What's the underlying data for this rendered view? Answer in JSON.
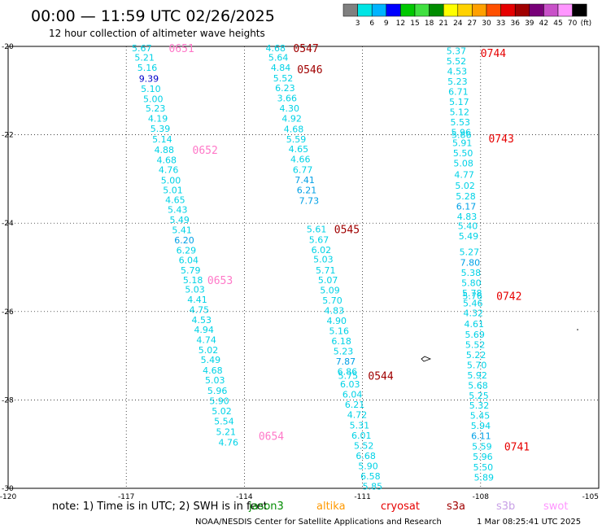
{
  "title": "00:00 — 11:59 UTC 02/26/2025",
  "subtitle": "12 hour collection of altimeter wave heights",
  "note": "note: 1) Time is in UTC; 2) SWH is in feet",
  "credit": "NOAA/NESDIS Center for Satellite Applications and Research",
  "timestamp": "1 Mar 08:25:41 UTC 2025",
  "colorbar": {
    "unit": "(ft)",
    "ticks": [
      "3",
      "6",
      "9",
      "12",
      "15",
      "18",
      "21",
      "24",
      "27",
      "30",
      "33",
      "36",
      "39",
      "42",
      "45",
      "70"
    ],
    "colors": [
      "#808080",
      "#00e5e5",
      "#00b4ff",
      "#0000ff",
      "#00c800",
      "#40e040",
      "#008c00",
      "#ffff00",
      "#ffd200",
      "#ffa000",
      "#ff5000",
      "#e60000",
      "#a00000",
      "#780078",
      "#c850c8",
      "#ff96ff",
      "#000000"
    ]
  },
  "satellites": [
    {
      "name": "jason3",
      "color": "#008c00"
    },
    {
      "name": "altika",
      "color": "#ff9900"
    },
    {
      "name": "cryosat",
      "color": "#e60000"
    },
    {
      "name": "s3a",
      "color": "#a00000"
    },
    {
      "name": "s3b",
      "color": "#c8a0e6"
    },
    {
      "name": "swot",
      "color": "#ff96ff"
    }
  ],
  "chart_data": {
    "type": "scatter",
    "xlim": [
      -120,
      -105
    ],
    "ylim": [
      -30,
      -20
    ],
    "x_ticks": [
      "-120",
      "-117",
      "-114",
      "-111",
      "-108",
      "-105"
    ],
    "y_ticks": [
      "-20",
      "-22",
      "-24",
      "-26",
      "-28",
      "-30"
    ],
    "grid": true,
    "tracks": [
      {
        "color": "#00d2e6",
        "points": [
          {
            "x": -116.86,
            "y": -20.04,
            "label": "5.67"
          },
          {
            "x": -116.79,
            "y": -20.25,
            "label": "5.21"
          },
          {
            "x": -116.72,
            "y": -20.48,
            "label": "5.16"
          },
          {
            "x": -116.68,
            "y": -20.73,
            "label": "9.39",
            "color": "#0000c8"
          },
          {
            "x": -116.63,
            "y": -20.96,
            "label": "5.10"
          },
          {
            "x": -116.57,
            "y": -21.19,
            "label": "5.00"
          },
          {
            "x": -116.51,
            "y": -21.4,
            "label": "5.23"
          },
          {
            "x": -116.45,
            "y": -21.63,
            "label": "4.19"
          },
          {
            "x": -116.39,
            "y": -21.86,
            "label": "5.39"
          },
          {
            "x": -116.34,
            "y": -22.1,
            "label": "5.14"
          },
          {
            "x": -116.29,
            "y": -22.34,
            "label": "4.88"
          },
          {
            "x": -116.23,
            "y": -22.57,
            "label": "4.68"
          },
          {
            "x": -116.18,
            "y": -22.79,
            "label": "4.76"
          },
          {
            "x": -116.12,
            "y": -23.03,
            "label": "5.00"
          },
          {
            "x": -116.07,
            "y": -23.25,
            "label": "5.01"
          },
          {
            "x": -116.01,
            "y": -23.47,
            "label": "4.65"
          },
          {
            "x": -115.95,
            "y": -23.69,
            "label": "5.43"
          },
          {
            "x": -115.9,
            "y": -23.92,
            "label": "5.49"
          },
          {
            "x": -115.84,
            "y": -24.15,
            "label": "5.41"
          },
          {
            "x": -115.78,
            "y": -24.38,
            "label": "6.20",
            "color": "#00a0e6"
          },
          {
            "x": -115.73,
            "y": -24.61,
            "label": "6.29"
          },
          {
            "x": -115.67,
            "y": -24.83,
            "label": "6.04"
          },
          {
            "x": -115.62,
            "y": -25.06,
            "label": "5.79"
          },
          {
            "x": -115.56,
            "y": -25.29,
            "label": "5.18"
          },
          {
            "x": -115.51,
            "y": -25.5,
            "label": "5.03"
          },
          {
            "x": -115.45,
            "y": -25.73,
            "label": "4.41"
          },
          {
            "x": -115.4,
            "y": -25.96,
            "label": "4.75"
          },
          {
            "x": -115.34,
            "y": -26.19,
            "label": "4.53"
          },
          {
            "x": -115.28,
            "y": -26.41,
            "label": "4.94"
          },
          {
            "x": -115.22,
            "y": -26.64,
            "label": "4.74"
          },
          {
            "x": -115.17,
            "y": -26.87,
            "label": "5.02"
          },
          {
            "x": -115.11,
            "y": -27.09,
            "label": "5.49"
          },
          {
            "x": -115.06,
            "y": -27.33,
            "label": "4.68"
          },
          {
            "x": -115.0,
            "y": -27.55,
            "label": "5.03"
          },
          {
            "x": -114.94,
            "y": -27.79,
            "label": "5.96"
          },
          {
            "x": -114.89,
            "y": -28.02,
            "label": "5.90"
          },
          {
            "x": -114.83,
            "y": -28.25,
            "label": "5.02"
          },
          {
            "x": -114.77,
            "y": -28.48,
            "label": "5.54"
          },
          {
            "x": -114.72,
            "y": -28.72,
            "label": "5.21"
          },
          {
            "x": -114.66,
            "y": -28.96,
            "label": "4.76"
          }
        ]
      },
      {
        "color": "#00d2e6",
        "points": [
          {
            "x": -113.46,
            "y": -20.04,
            "label": "4.68"
          },
          {
            "x": -113.39,
            "y": -20.25,
            "label": "5.64"
          },
          {
            "x": -113.33,
            "y": -20.48,
            "label": "4.84"
          },
          {
            "x": -113.27,
            "y": -20.72,
            "label": "5.52"
          },
          {
            "x": -113.22,
            "y": -20.94,
            "label": "6.23"
          },
          {
            "x": -113.17,
            "y": -21.17,
            "label": "3.66"
          },
          {
            "x": -113.11,
            "y": -21.4,
            "label": "4.30"
          },
          {
            "x": -113.05,
            "y": -21.63,
            "label": "4.92"
          },
          {
            "x": -113.0,
            "y": -21.87,
            "label": "4.68"
          },
          {
            "x": -112.94,
            "y": -22.1,
            "label": "5.59"
          },
          {
            "x": -112.88,
            "y": -22.32,
            "label": "4.65"
          },
          {
            "x": -112.83,
            "y": -22.55,
            "label": "4.66"
          },
          {
            "x": -112.77,
            "y": -22.79,
            "label": "6.77"
          },
          {
            "x": -112.72,
            "y": -23.02,
            "label": "7.41",
            "color": "#00a0e6"
          },
          {
            "x": -112.67,
            "y": -23.25,
            "label": "6.21",
            "color": "#00a0e6"
          },
          {
            "x": -112.61,
            "y": -23.49,
            "label": "7.73",
            "color": "#00a0e6"
          },
          {
            "x": -112.42,
            "y": -24.13,
            "label": "5.61"
          },
          {
            "x": -112.36,
            "y": -24.37,
            "label": "5.67"
          },
          {
            "x": -112.3,
            "y": -24.6,
            "label": "6.02"
          },
          {
            "x": -112.25,
            "y": -24.82,
            "label": "5.03"
          },
          {
            "x": -112.19,
            "y": -25.06,
            "label": "5.71"
          },
          {
            "x": -112.13,
            "y": -25.29,
            "label": "5.07"
          },
          {
            "x": -112.08,
            "y": -25.52,
            "label": "5.09"
          },
          {
            "x": -112.02,
            "y": -25.75,
            "label": "5.70"
          },
          {
            "x": -111.97,
            "y": -25.98,
            "label": "4.83"
          },
          {
            "x": -111.91,
            "y": -26.21,
            "label": "4.90"
          },
          {
            "x": -111.85,
            "y": -26.44,
            "label": "5.16"
          },
          {
            "x": -111.79,
            "y": -26.67,
            "label": "6.18"
          },
          {
            "x": -111.74,
            "y": -26.9,
            "label": "5.23"
          },
          {
            "x": -111.68,
            "y": -27.13,
            "label": "7.87",
            "color": "#00a0e6"
          },
          {
            "x": -111.64,
            "y": -27.36,
            "label": "6.86"
          },
          {
            "x": -111.62,
            "y": -27.45,
            "label": "5.75"
          },
          {
            "x": -111.57,
            "y": -27.64,
            "label": "6.03"
          },
          {
            "x": -111.51,
            "y": -27.87,
            "label": "6.04"
          },
          {
            "x": -111.45,
            "y": -28.1,
            "label": "6.21"
          },
          {
            "x": -111.39,
            "y": -28.33,
            "label": "4.72"
          },
          {
            "x": -111.33,
            "y": -28.57,
            "label": "5.31"
          },
          {
            "x": -111.28,
            "y": -28.8,
            "label": "6.01"
          },
          {
            "x": -111.22,
            "y": -29.03,
            "label": "5.52"
          },
          {
            "x": -111.17,
            "y": -29.26,
            "label": "6.68"
          },
          {
            "x": -111.11,
            "y": -29.49,
            "label": "5.90"
          },
          {
            "x": -111.05,
            "y": -29.72,
            "label": "6.58"
          },
          {
            "x": -111.0,
            "y": -29.95,
            "label": "5.85"
          }
        ]
      },
      {
        "color": "#00d2e6",
        "points": [
          {
            "x": -108.87,
            "y": -20.1,
            "label": "5.37"
          },
          {
            "x": -108.87,
            "y": -20.33,
            "label": "5.52"
          },
          {
            "x": -108.85,
            "y": -20.56,
            "label": "4.53"
          },
          {
            "x": -108.84,
            "y": -20.79,
            "label": "5.23"
          },
          {
            "x": -108.82,
            "y": -21.02,
            "label": "6.71"
          },
          {
            "x": -108.8,
            "y": -21.25,
            "label": "5.17"
          },
          {
            "x": -108.79,
            "y": -21.48,
            "label": "5.12"
          },
          {
            "x": -108.77,
            "y": -21.71,
            "label": "5.53"
          },
          {
            "x": -108.75,
            "y": -21.94,
            "label": "5.96"
          },
          {
            "x": -108.74,
            "y": -22.0,
            "label": "5.86"
          },
          {
            "x": -108.72,
            "y": -22.18,
            "label": "5.91"
          },
          {
            "x": -108.7,
            "y": -22.41,
            "label": "5.50"
          },
          {
            "x": -108.69,
            "y": -22.64,
            "label": "5.08"
          },
          {
            "x": -108.67,
            "y": -22.9,
            "label": "4.77"
          },
          {
            "x": -108.65,
            "y": -23.15,
            "label": "5.02"
          },
          {
            "x": -108.63,
            "y": -23.39,
            "label": "5.28"
          },
          {
            "x": -108.62,
            "y": -23.62,
            "label": "6.17",
            "color": "#00a0e6"
          },
          {
            "x": -108.6,
            "y": -23.85,
            "label": "4.83"
          },
          {
            "x": -108.58,
            "y": -24.06,
            "label": "5.40"
          },
          {
            "x": -108.56,
            "y": -24.29,
            "label": "5.49"
          },
          {
            "x": -108.54,
            "y": -24.65,
            "label": "5.27"
          },
          {
            "x": -108.52,
            "y": -24.89,
            "label": "7.80",
            "color": "#00a0e6"
          },
          {
            "x": -108.5,
            "y": -25.12,
            "label": "5.38"
          },
          {
            "x": -108.49,
            "y": -25.35,
            "label": "5.80"
          },
          {
            "x": -108.47,
            "y": -25.58,
            "label": "5.78"
          },
          {
            "x": -108.46,
            "y": -25.64,
            "label": "5.76"
          },
          {
            "x": -108.45,
            "y": -25.81,
            "label": "5.46"
          },
          {
            "x": -108.44,
            "y": -26.03,
            "label": "4.32"
          },
          {
            "x": -108.42,
            "y": -26.28,
            "label": "4.61"
          },
          {
            "x": -108.4,
            "y": -26.52,
            "label": "5.69"
          },
          {
            "x": -108.39,
            "y": -26.75,
            "label": "5.52"
          },
          {
            "x": -108.37,
            "y": -26.98,
            "label": "5.22"
          },
          {
            "x": -108.35,
            "y": -27.21,
            "label": "5.70"
          },
          {
            "x": -108.34,
            "y": -27.44,
            "label": "5.92"
          },
          {
            "x": -108.32,
            "y": -27.67,
            "label": "5.68"
          },
          {
            "x": -108.3,
            "y": -27.9,
            "label": "5.25"
          },
          {
            "x": -108.29,
            "y": -28.12,
            "label": "5.32"
          },
          {
            "x": -108.27,
            "y": -28.35,
            "label": "5.45"
          },
          {
            "x": -108.25,
            "y": -28.58,
            "label": "5.94"
          },
          {
            "x": -108.24,
            "y": -28.81,
            "label": "6.11",
            "color": "#00a0e6"
          },
          {
            "x": -108.22,
            "y": -29.05,
            "label": "5.59"
          },
          {
            "x": -108.2,
            "y": -29.28,
            "label": "5.96"
          },
          {
            "x": -108.19,
            "y": -29.52,
            "label": "5.50"
          },
          {
            "x": -108.17,
            "y": -29.75,
            "label": "5.89"
          }
        ]
      }
    ],
    "time_labels": [
      {
        "text": "0651",
        "x": -115.92,
        "y": -20.04,
        "color": "#ff78c8"
      },
      {
        "text": "0652",
        "x": -115.32,
        "y": -22.34,
        "color": "#ff78c8"
      },
      {
        "text": "0653",
        "x": -114.94,
        "y": -25.29,
        "color": "#ff78c8"
      },
      {
        "text": "0654",
        "x": -113.64,
        "y": -28.81,
        "color": "#ff78c8"
      },
      {
        "text": "0547",
        "x": -112.76,
        "y": -20.04,
        "color": "#a00000"
      },
      {
        "text": "0546",
        "x": -112.66,
        "y": -20.52,
        "color": "#a00000"
      },
      {
        "text": "0545",
        "x": -111.72,
        "y": -24.13,
        "color": "#a00000"
      },
      {
        "text": "0544",
        "x": -110.86,
        "y": -27.45,
        "color": "#a00000"
      },
      {
        "text": "0744",
        "x": -108.0,
        "y": -20.15,
        "color": "#e60000"
      },
      {
        "text": "0743",
        "x": -107.8,
        "y": -22.08,
        "color": "#e60000"
      },
      {
        "text": "0742",
        "x": -107.6,
        "y": -25.64,
        "color": "#e60000"
      },
      {
        "text": "0741",
        "x": -107.4,
        "y": -29.05,
        "color": "#e60000"
      }
    ]
  }
}
